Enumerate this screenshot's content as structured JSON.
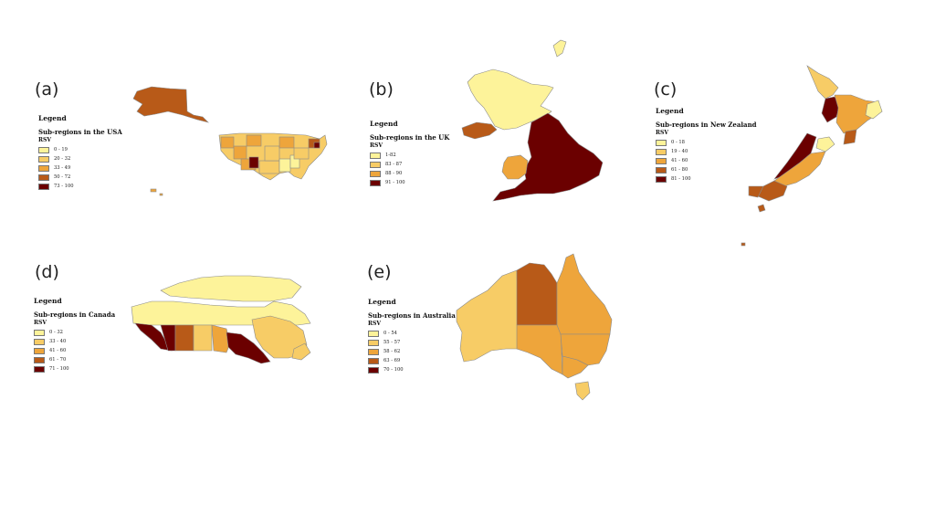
{
  "colors": {
    "c1": "#fdf39a",
    "c2": "#f7cc66",
    "c3": "#eea53b",
    "c4": "#b85a18",
    "c5": "#6b0000"
  },
  "panels": [
    {
      "id": "usa",
      "label": "(a)",
      "legend_title": "Legend",
      "legend_subtitle": "Sub-regions in the USA",
      "field": "RSV",
      "ranges": [
        "0 - 19",
        "20 - 32",
        "33 - 49",
        "50 - 72",
        "73 - 100"
      ]
    },
    {
      "id": "uk",
      "label": "(b)",
      "legend_title": "Legend",
      "legend_subtitle": "Sub-regions in the UK",
      "field": "RSV",
      "ranges": [
        "1-82",
        "83 - 87",
        "88 - 90",
        "91 - 100"
      ]
    },
    {
      "id": "nz",
      "label": "(c)",
      "legend_title": "Legend",
      "legend_subtitle": "Sub-regions in New Zealand",
      "field": "RSV",
      "ranges": [
        "0 - 18",
        "19 - 40",
        "41 - 60",
        "61 - 80",
        "81 - 100"
      ]
    },
    {
      "id": "canada",
      "label": "(d)",
      "legend_title": "Legend",
      "legend_subtitle": "Sub-regions in Canada",
      "field": "RSV",
      "ranges": [
        "0 - 32",
        "33 - 40",
        "41 - 60",
        "61 - 70",
        "71 - 100"
      ]
    },
    {
      "id": "australia",
      "label": "(e)",
      "legend_title": "Legend",
      "legend_subtitle": "Sub-regions in Australia",
      "field": "RSV",
      "ranges": [
        "0 - 54",
        "55 - 57",
        "58 - 62",
        "63 - 69",
        "70 - 100"
      ]
    }
  ]
}
